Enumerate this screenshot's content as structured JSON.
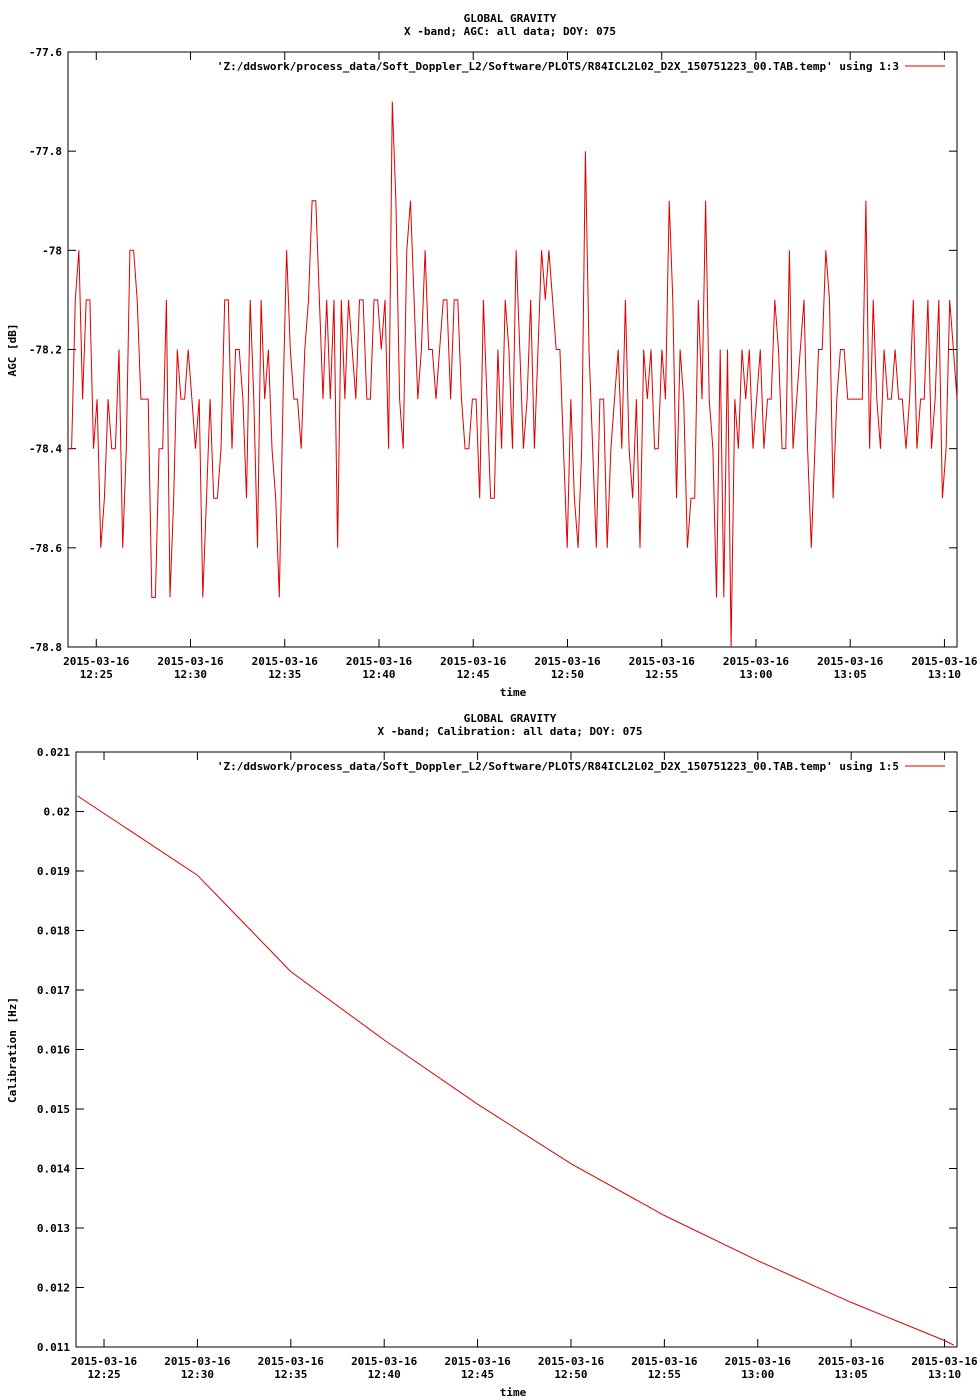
{
  "chart_data": [
    {
      "type": "line",
      "title": "GLOBAL GRAVITY",
      "subtitle": "X -band; AGC: all data; DOY: 075",
      "xlabel": "time",
      "ylabel": "AGC [dB]",
      "xlim": [
        "2015-03-16 12:23:30",
        "2015-03-16 13:10:40"
      ],
      "ylim": [
        -78.8,
        -77.6
      ],
      "xticks": [
        {
          "d": "2015-03-16",
          "t": "12:25"
        },
        {
          "d": "2015-03-16",
          "t": "12:30"
        },
        {
          "d": "2015-03-16",
          "t": "12:35"
        },
        {
          "d": "2015-03-16",
          "t": "12:40"
        },
        {
          "d": "2015-03-16",
          "t": "12:45"
        },
        {
          "d": "2015-03-16",
          "t": "12:50"
        },
        {
          "d": "2015-03-16",
          "t": "12:55"
        },
        {
          "d": "2015-03-16",
          "t": "13:00"
        },
        {
          "d": "2015-03-16",
          "t": "13:05"
        },
        {
          "d": "2015-03-16",
          "t": "13:10"
        }
      ],
      "yticks": [
        "-77.6",
        "-77.8",
        "-78",
        "-78.2",
        "-78.4",
        "-78.6",
        "-78.8"
      ],
      "legend": "top-right",
      "grid": false,
      "series": [
        {
          "name": "'Z:/ddswork/process_data/Soft_Doppler_L2/Software/PLOTS/R84ICL2L02_D2X_150751223_00.TAB.temp' using 1:3",
          "color": "#e00000",
          "x_range": [
            "2015-03-16 12:23:30",
            "2015-03-16 13:10:40"
          ],
          "values": [
            -78.4,
            -78.4,
            -78.1,
            -78.0,
            -78.3,
            -78.1,
            -78.1,
            -78.4,
            -78.3,
            -78.6,
            -78.5,
            -78.3,
            -78.4,
            -78.4,
            -78.2,
            -78.6,
            -78.4,
            -78.0,
            -78.0,
            -78.1,
            -78.3,
            -78.3,
            -78.3,
            -78.7,
            -78.7,
            -78.4,
            -78.4,
            -78.1,
            -78.7,
            -78.5,
            -78.2,
            -78.3,
            -78.3,
            -78.2,
            -78.3,
            -78.4,
            -78.3,
            -78.7,
            -78.5,
            -78.3,
            -78.5,
            -78.5,
            -78.4,
            -78.1,
            -78.1,
            -78.4,
            -78.2,
            -78.2,
            -78.3,
            -78.5,
            -78.1,
            -78.3,
            -78.6,
            -78.1,
            -78.3,
            -78.2,
            -78.4,
            -78.5,
            -78.7,
            -78.3,
            -78.0,
            -78.2,
            -78.3,
            -78.3,
            -78.4,
            -78.2,
            -78.1,
            -77.9,
            -77.9,
            -78.1,
            -78.3,
            -78.1,
            -78.3,
            -78.1,
            -78.6,
            -78.1,
            -78.3,
            -78.1,
            -78.2,
            -78.3,
            -78.1,
            -78.1,
            -78.3,
            -78.3,
            -78.1,
            -78.1,
            -78.2,
            -78.1,
            -78.4,
            -77.7,
            -77.9,
            -78.3,
            -78.4,
            -78.0,
            -77.9,
            -78.1,
            -78.3,
            -78.2,
            -78.0,
            -78.2,
            -78.2,
            -78.3,
            -78.2,
            -78.1,
            -78.1,
            -78.3,
            -78.1,
            -78.1,
            -78.3,
            -78.4,
            -78.4,
            -78.3,
            -78.3,
            -78.5,
            -78.1,
            -78.3,
            -78.5,
            -78.5,
            -78.2,
            -78.4,
            -78.1,
            -78.2,
            -78.4,
            -78.0,
            -78.2,
            -78.4,
            -78.3,
            -78.1,
            -78.4,
            -78.2,
            -78.0,
            -78.1,
            -78.0,
            -78.1,
            -78.2,
            -78.2,
            -78.4,
            -78.6,
            -78.3,
            -78.5,
            -78.6,
            -78.4,
            -77.8,
            -78.2,
            -78.4,
            -78.6,
            -78.3,
            -78.3,
            -78.6,
            -78.4,
            -78.3,
            -78.2,
            -78.4,
            -78.1,
            -78.4,
            -78.5,
            -78.3,
            -78.6,
            -78.2,
            -78.3,
            -78.2,
            -78.4,
            -78.4,
            -78.2,
            -78.3,
            -77.9,
            -78.1,
            -78.5,
            -78.2,
            -78.3,
            -78.6,
            -78.5,
            -78.5,
            -78.1,
            -78.3,
            -77.9,
            -78.3,
            -78.4,
            -78.7,
            -78.2,
            -78.7,
            -78.2,
            -78.8,
            -78.3,
            -78.4,
            -78.2,
            -78.3,
            -78.2,
            -78.4,
            -78.3,
            -78.2,
            -78.4,
            -78.3,
            -78.3,
            -78.1,
            -78.2,
            -78.4,
            -78.4,
            -78.0,
            -78.4,
            -78.3,
            -78.2,
            -78.1,
            -78.4,
            -78.6,
            -78.4,
            -78.2,
            -78.2,
            -78.0,
            -78.1,
            -78.5,
            -78.3,
            -78.2,
            -78.2,
            -78.3,
            -78.3,
            -78.3,
            -78.3,
            -78.3,
            -77.9,
            -78.4,
            -78.1,
            -78.3,
            -78.4,
            -78.2,
            -78.3,
            -78.3,
            -78.2,
            -78.3,
            -78.3,
            -78.4,
            -78.3,
            -78.1,
            -78.4,
            -78.3,
            -78.3,
            -78.1,
            -78.4,
            -78.3,
            -78.1,
            -78.5,
            -78.4,
            -78.1,
            -78.2,
            -78.3
          ]
        }
      ]
    },
    {
      "type": "line",
      "title": "GLOBAL GRAVITY",
      "subtitle": "X -band; Calibration: all data; DOY: 075",
      "xlabel": "time",
      "ylabel": "Calibration [Hz]",
      "xlim": [
        "2015-03-16 12:23:30",
        "2015-03-16 13:10:40"
      ],
      "ylim": [
        0.011,
        0.021
      ],
      "xticks": [
        {
          "d": "2015-03-16",
          "t": "12:25"
        },
        {
          "d": "2015-03-16",
          "t": "12:30"
        },
        {
          "d": "2015-03-16",
          "t": "12:35"
        },
        {
          "d": "2015-03-16",
          "t": "12:40"
        },
        {
          "d": "2015-03-16",
          "t": "12:45"
        },
        {
          "d": "2015-03-16",
          "t": "12:50"
        },
        {
          "d": "2015-03-16",
          "t": "12:55"
        },
        {
          "d": "2015-03-16",
          "t": "13:00"
        },
        {
          "d": "2015-03-16",
          "t": "13:05"
        },
        {
          "d": "2015-03-16",
          "t": "13:10"
        }
      ],
      "yticks": [
        "0.021",
        "0.02",
        "0.019",
        "0.018",
        "0.017",
        "0.016",
        "0.015",
        "0.014",
        "0.013",
        "0.012",
        "0.011"
      ],
      "legend": "top-right",
      "grid": false,
      "series": [
        {
          "name": "'Z:/ddswork/process_data/Soft_Doppler_L2/Software/PLOTS/R84ICL2L02_D2X_150751223_00.TAB.temp' using 1:5",
          "color": "#e00000",
          "x": [
            "2015-03-16 12:23:35",
            "2015-03-16 12:30:00",
            "2015-03-16 12:35:00",
            "2015-03-16 12:40:00",
            "2015-03-16 12:45:00",
            "2015-03-16 12:50:00",
            "2015-03-16 12:55:00",
            "2015-03-16 13:00:00",
            "2015-03-16 13:05:00",
            "2015-03-16 13:10:00",
            "2015-03-16 13:10:30"
          ],
          "values": [
            0.02026,
            0.01893,
            0.01731,
            0.01616,
            0.01508,
            0.01408,
            0.01321,
            0.01245,
            0.01175,
            0.01111,
            0.01103
          ]
        }
      ]
    }
  ]
}
